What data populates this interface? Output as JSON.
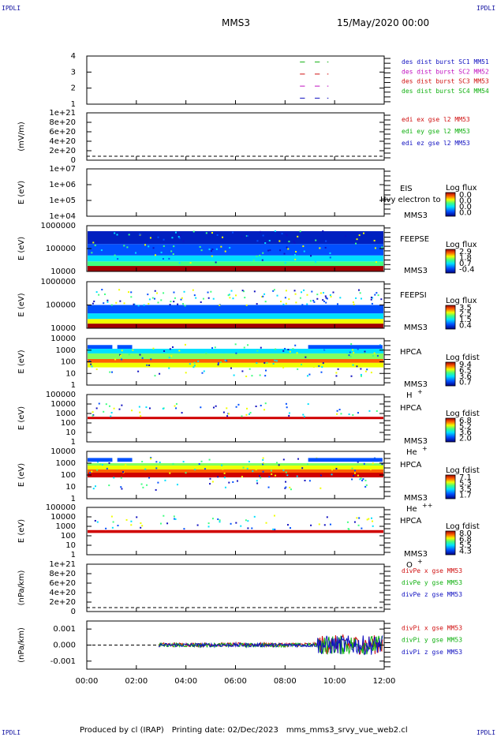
{
  "header": {
    "mission": "MMS3",
    "datetime": "15/May/2020 00:00"
  },
  "corners": {
    "tl": "IPDLI",
    "tr": "IPDLI",
    "bl": "IPDLI",
    "br": "IPDLI"
  },
  "footer": {
    "produced": "Produced by cl (IRAP)",
    "printing": "Printing date: 02/Dec/2023",
    "file": "mms_mms3_srvy_vue_web2.cl"
  },
  "chart_data": {
    "type": "heatmap",
    "x_ticks": [
      "00:00",
      "02:00",
      "04:00",
      "06:00",
      "08:00",
      "10:00",
      "12:00"
    ],
    "x_range_hours": [
      0,
      12
    ],
    "panels": [
      {
        "id": "p1",
        "type": "scatter",
        "ylabel": "",
        "y_ticks": [
          "1",
          "2",
          "3",
          "4"
        ],
        "legend": [
          {
            "text": "des dist burst SC1 MM51",
            "color": "#1010c0"
          },
          {
            "text": "des dist burst SC2 MM52",
            "color": "#c010c0"
          },
          {
            "text": "des dist burst SC3 MM53",
            "color": "#d01010"
          },
          {
            "text": "des dist burst SC4 MM54",
            "color": "#10b010"
          }
        ],
        "segments": [
          {
            "y": 4,
            "color": "#10b010",
            "x": [
              [
                8.6,
                8.8
              ],
              [
                9.2,
                9.4
              ],
              [
                9.7,
                9.75
              ]
            ]
          },
          {
            "y": 3,
            "color": "#d01010",
            "x": [
              [
                8.6,
                8.8
              ],
              [
                9.2,
                9.4
              ],
              [
                9.7,
                9.75
              ]
            ]
          },
          {
            "y": 2,
            "color": "#c010c0",
            "x": [
              [
                8.6,
                8.8
              ],
              [
                9.2,
                9.4
              ],
              [
                9.7,
                9.75
              ]
            ]
          },
          {
            "y": 1,
            "color": "#1010c0",
            "x": [
              [
                8.6,
                8.8
              ],
              [
                9.2,
                9.4
              ],
              [
                9.7,
                9.75
              ]
            ]
          }
        ]
      },
      {
        "id": "p2",
        "type": "line",
        "ylabel": "(mV/m)",
        "y_ticks": [
          "0",
          "2e+20",
          "4e+20",
          "6e+20",
          "8e+20",
          "1e+21"
        ],
        "legend": [
          {
            "text": "edi ex gse l2 MM53",
            "color": "#d01010"
          },
          {
            "text": "edi ey gse l2 MM53",
            "color": "#10b010"
          },
          {
            "text": "edi ez gse l2 MM53",
            "color": "#1010c0"
          }
        ]
      },
      {
        "id": "p3",
        "type": "heatmap",
        "ylabel": "E (eV)",
        "y_ticks": [
          "1e+04",
          "1e+05",
          "1e+06",
          "1e+07"
        ],
        "labels": [
          "EIS",
          "MMS3"
        ],
        "overlay_text": "Hvy electron to",
        "cbar": {
          "title": "Log flux",
          "ticks": [
            "0.0",
            "0.0",
            "0.0",
            "0.0"
          ]
        }
      },
      {
        "id": "p4",
        "type": "heatmap",
        "ylabel": "E (eV)",
        "y_ticks": [
          "10000",
          "100000",
          "1000000"
        ],
        "labels": [
          "FEEPSE",
          "MMS3"
        ],
        "cbar": {
          "title": "Log flux",
          "ticks": [
            "2.9",
            "1.8",
            "0.7",
            "-0.4"
          ]
        }
      },
      {
        "id": "p5",
        "type": "heatmap",
        "ylabel": "E (eV)",
        "y_ticks": [
          "10000",
          "100000",
          "1000000"
        ],
        "labels": [
          "FEEPSI",
          "MMS3"
        ],
        "cbar": {
          "title": "Log flux",
          "ticks": [
            "3.5",
            "2.5",
            "1.5",
            "0.4"
          ]
        }
      },
      {
        "id": "p6",
        "type": "heatmap",
        "ylabel": "E (eV)",
        "y_ticks": [
          "1",
          "10",
          "100",
          "1000",
          "10000"
        ],
        "labels": [
          "HPCA",
          "MMS3"
        ],
        "species": "H",
        "species_sup": "+",
        "cbar": {
          "title": "Log fdist",
          "ticks": [
            "9.4",
            "6.5",
            "3.6",
            "0.7"
          ]
        }
      },
      {
        "id": "p7",
        "type": "heatmap",
        "ylabel": "E (eV)",
        "y_ticks": [
          "1",
          "10",
          "100",
          "1000",
          "10000",
          "100000"
        ],
        "labels": [
          "HPCA",
          "MMS3"
        ],
        "species": "He",
        "species_sup": "+",
        "cbar": {
          "title": "Log fdist",
          "ticks": [
            "6.8",
            "5.2",
            "3.6",
            "2.0"
          ]
        }
      },
      {
        "id": "p8",
        "type": "heatmap",
        "ylabel": "E (eV)",
        "y_ticks": [
          "1",
          "10",
          "100",
          "1000",
          "10000"
        ],
        "labels": [
          "HPCA",
          "MMS3"
        ],
        "species": "He",
        "species_sup": "++",
        "cbar": {
          "title": "Log fdist",
          "ticks": [
            "7.1",
            "5.3",
            "3.5",
            "1.7"
          ]
        }
      },
      {
        "id": "p9",
        "type": "heatmap",
        "ylabel": "E (eV)",
        "y_ticks": [
          "1",
          "10",
          "100",
          "1000",
          "10000",
          "100000"
        ],
        "labels": [
          "HPCA",
          "MMS3"
        ],
        "species": "O",
        "species_sup": "+",
        "cbar": {
          "title": "Log fdist",
          "ticks": [
            "8.0",
            "6.8",
            "5.5",
            "4.3"
          ]
        }
      },
      {
        "id": "p10",
        "type": "line",
        "ylabel": "(nPa/km)",
        "y_ticks": [
          "0",
          "2e+20",
          "4e+20",
          "6e+20",
          "8e+20",
          "1e+21"
        ],
        "legend": [
          {
            "text": "divPe x gse MM53",
            "color": "#d01010"
          },
          {
            "text": "divPe y gse MM53",
            "color": "#10b010"
          },
          {
            "text": "divPe z gse MM53",
            "color": "#1010c0"
          }
        ]
      },
      {
        "id": "p11",
        "type": "line",
        "ylabel": "(nPa/km)",
        "y_ticks": [
          "-0.001",
          "0.000",
          "0.001"
        ],
        "ylim": [
          -0.0015,
          0.0015
        ],
        "legend": [
          {
            "text": "divPi x gse MM53",
            "color": "#d01010"
          },
          {
            "text": "divPi y gse MM53",
            "color": "#10b010"
          },
          {
            "text": "divPi z gse MM53",
            "color": "#1010c0"
          }
        ]
      }
    ]
  }
}
